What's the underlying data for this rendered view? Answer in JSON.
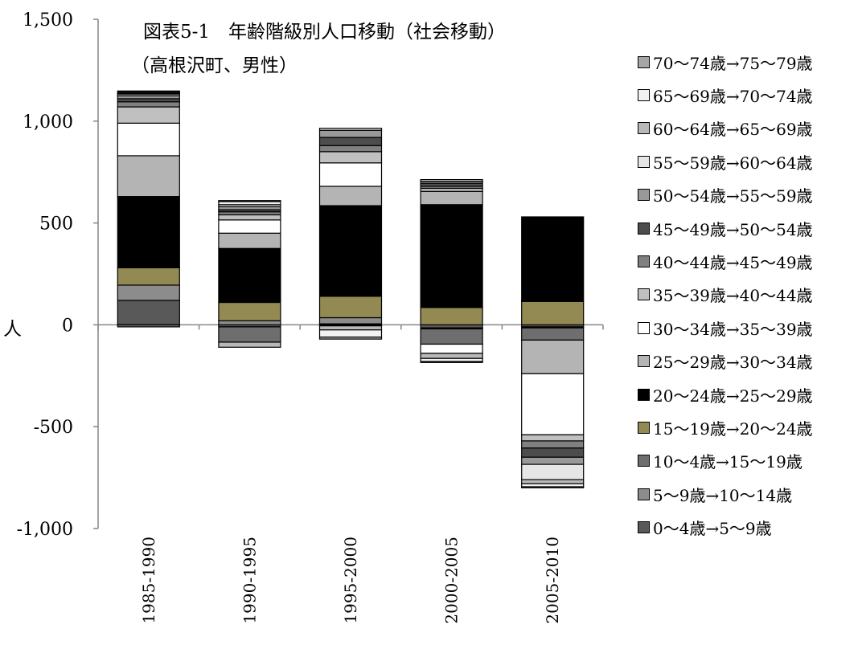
{
  "chart_data": {
    "type": "bar",
    "stacked": true,
    "title": "図表5-1　年齢階級別人口移動（社会移動）",
    "subtitle": "（高根沢町、男性）",
    "ylabel": "人",
    "ylim": [
      -1000,
      1500
    ],
    "yticks": [
      -1000,
      -500,
      0,
      500,
      1000,
      1500
    ],
    "ytick_labels": [
      "-1,000",
      "-500",
      "0",
      "500",
      "1,000",
      "1,500"
    ],
    "categories": [
      "1985-1990",
      "1990-1995",
      "1995-2000",
      "2000-2005",
      "2005-2010"
    ],
    "legend_position": "right",
    "series": [
      {
        "name": "0～4歳→5～9歳",
        "color": "#595959",
        "values": [
          120,
          -10,
          5,
          -15,
          -10
        ]
      },
      {
        "name": "5～9歳→10～14歳",
        "color": "#8c8c8c",
        "values": [
          75,
          20,
          30,
          -5,
          -5
        ]
      },
      {
        "name": "10～4歳→15～19歳",
        "color": "#6e6e6e",
        "values": [
          -10,
          -75,
          -5,
          -75,
          -60
        ]
      },
      {
        "name": "15～19歳→20～24歳",
        "color": "#938953",
        "values": [
          85,
          90,
          105,
          85,
          115
        ]
      },
      {
        "name": "20～24歳→25～29歳",
        "color": "#000000",
        "values": [
          350,
          265,
          445,
          505,
          415
        ]
      },
      {
        "name": "25～29歳→30～34歳",
        "color": "#b4b4b4",
        "values": [
          200,
          75,
          95,
          65,
          -165
        ]
      },
      {
        "name": "30～34歳→35～39歳",
        "color": "#ffffff",
        "values": [
          160,
          65,
          115,
          -45,
          -300
        ]
      },
      {
        "name": "35～39歳→40～44歳",
        "color": "#c0c0c0",
        "values": [
          80,
          25,
          55,
          15,
          -30
        ]
      },
      {
        "name": "40～44歳→45～49歳",
        "color": "#808080",
        "values": [
          25,
          15,
          30,
          10,
          -35
        ]
      },
      {
        "name": "45～49歳→50～54歳",
        "color": "#4d4d4d",
        "values": [
          15,
          10,
          40,
          15,
          -45
        ]
      },
      {
        "name": "50～54歳→55～59歳",
        "color": "#999999",
        "values": [
          15,
          15,
          35,
          10,
          -35
        ]
      },
      {
        "name": "55～59歳→60～64歳",
        "color": "#e6e6e6",
        "values": [
          8,
          10,
          10,
          8,
          -75
        ]
      },
      {
        "name": "60～64歳→65～69歳",
        "color": "#b8b8b8",
        "values": [
          5,
          -25,
          -20,
          -25,
          -20
        ]
      },
      {
        "name": "65～69歳→70～74歳",
        "color": "#f2f2f2",
        "values": [
          5,
          15,
          -35,
          -15,
          -15
        ]
      },
      {
        "name": "70～74歳→75～79歳",
        "color": "#a6a6a6",
        "values": [
          5,
          5,
          -10,
          -5,
          -5
        ]
      }
    ]
  }
}
